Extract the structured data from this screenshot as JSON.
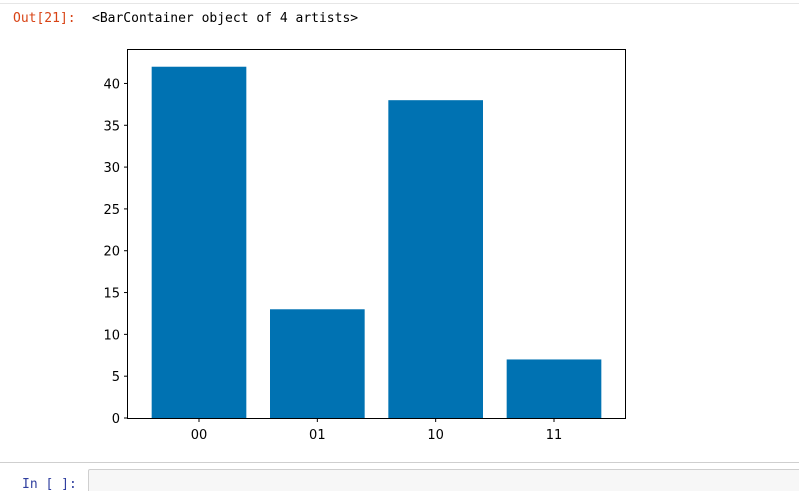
{
  "output_cell": {
    "prompt": "Out[21]:",
    "text": "<BarContainer object of 4 artists>"
  },
  "input_cell": {
    "prompt": "In [ ]:",
    "value": ""
  },
  "colors": {
    "bar": "#0072b2",
    "out_prompt": "#d84315",
    "in_prompt": "#303f9f"
  },
  "chart_data": {
    "type": "bar",
    "categories": [
      "00",
      "01",
      "10",
      "11"
    ],
    "values": [
      42,
      13,
      38,
      7
    ],
    "title": "",
    "xlabel": "",
    "ylabel": "",
    "ylim": [
      0,
      44
    ],
    "yticks": [
      0,
      5,
      10,
      15,
      20,
      25,
      30,
      35,
      40
    ],
    "grid": false,
    "legend": "none"
  }
}
